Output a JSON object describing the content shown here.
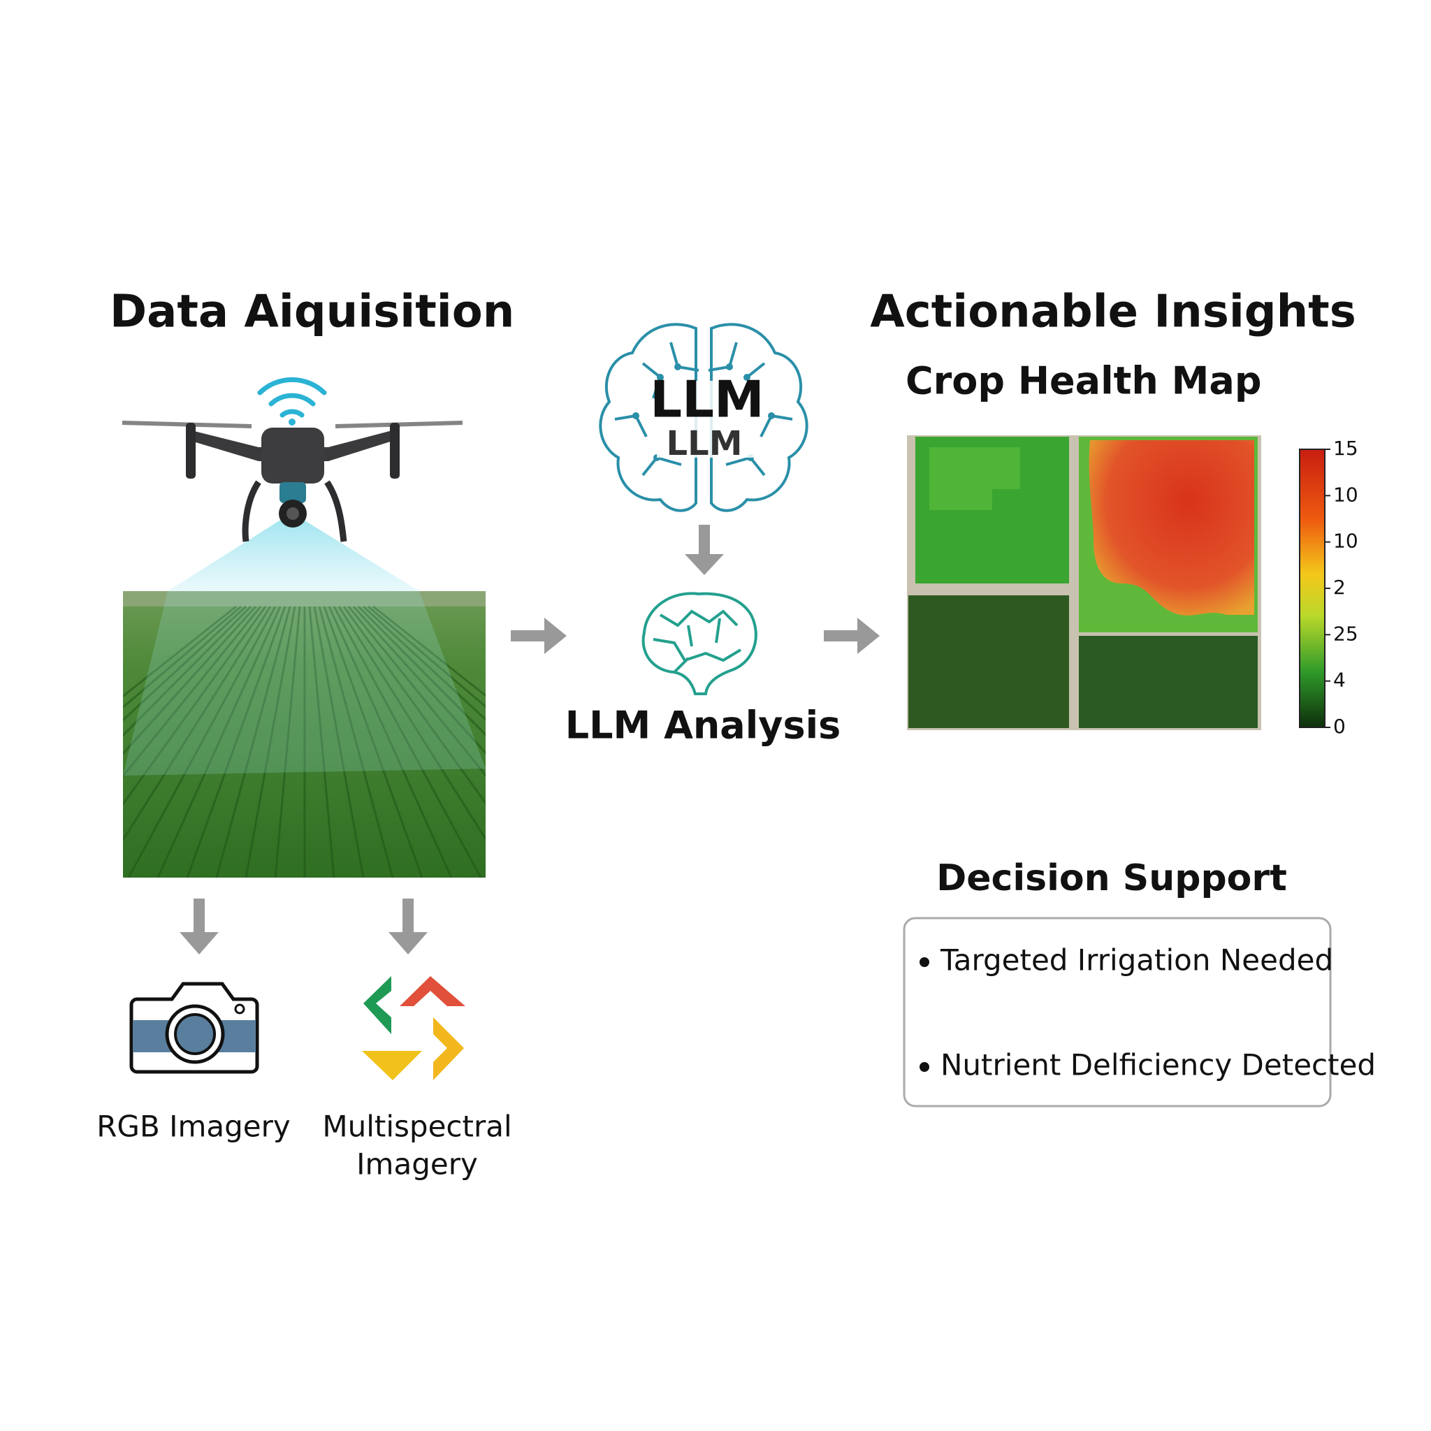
{
  "acquisition": {
    "title": "Data Aiquisition",
    "rgb_label": "RGB Imagery",
    "multispectral_label": [
      "Multispectral",
      "Imagery"
    ]
  },
  "analysis": {
    "brain_labels": [
      "LLM",
      "LLM"
    ],
    "label": "LLM Analysis"
  },
  "insights": {
    "title": "Actionable Insights",
    "map_title": "Crop Health Map",
    "scale_labels": [
      "15",
      "10",
      "10",
      "2",
      "25",
      "4",
      "0"
    ],
    "decision": {
      "title": "Decision Support",
      "items": [
        "Targeted Irrigation Needed",
        "Nutrient Delficiency Detected"
      ]
    }
  }
}
